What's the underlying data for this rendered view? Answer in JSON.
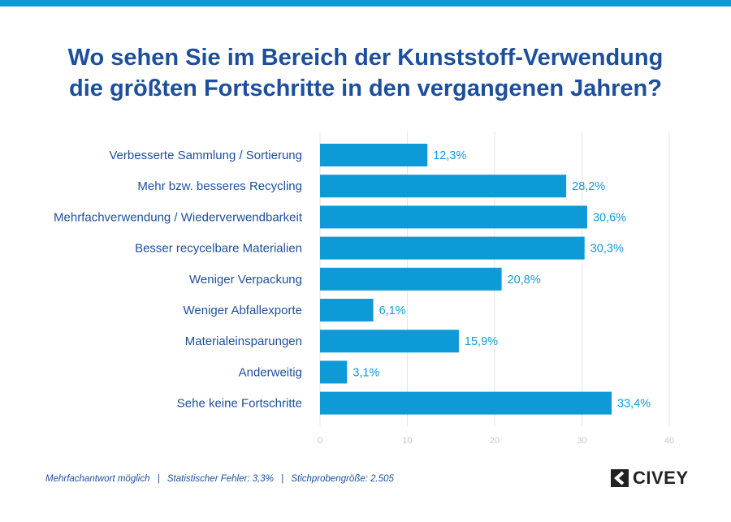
{
  "title": {
    "line1": "Wo sehen Sie im Bereich der Kunststoff-Verwendung",
    "line2": "die größten Fortschritte in den vergangenen Jahren?"
  },
  "chart_data": {
    "type": "bar",
    "orientation": "horizontal",
    "categories": [
      "Verbesserte Sammlung / Sortierung",
      "Mehr bzw. besseres Recycling",
      "Mehrfachverwendung / Wiederverwendbarkeit",
      "Besser recycelbare Materialien",
      "Weniger Verpackung",
      "Weniger Abfallexporte",
      "Materialeinsparungen",
      "Anderweitig",
      "Sehe keine Fortschritte"
    ],
    "values": [
      12.3,
      28.2,
      30.6,
      30.3,
      20.8,
      6.1,
      15.9,
      3.1,
      33.4
    ],
    "value_labels": [
      "12,3%",
      "28,2%",
      "30,6%",
      "30,3%",
      "20,8%",
      "6,1%",
      "15,9%",
      "3,1%",
      "33,4%"
    ],
    "x_ticks": [
      "0",
      "10",
      "20",
      "30",
      "40"
    ],
    "xlim": [
      0,
      40
    ],
    "grid": true,
    "bar_color": "#0d9ad6",
    "label_color": "#1d4f9c",
    "value_color": "#0f9cd8"
  },
  "footer": {
    "note1": "Mehrfachantwort möglich",
    "separator": "|",
    "note2": "Statistischer Fehler: 3,3%",
    "note3": "Stichprobengröße: 2.505"
  },
  "logo": {
    "text": "CIVEY",
    "icon": "civey-logo-icon"
  }
}
